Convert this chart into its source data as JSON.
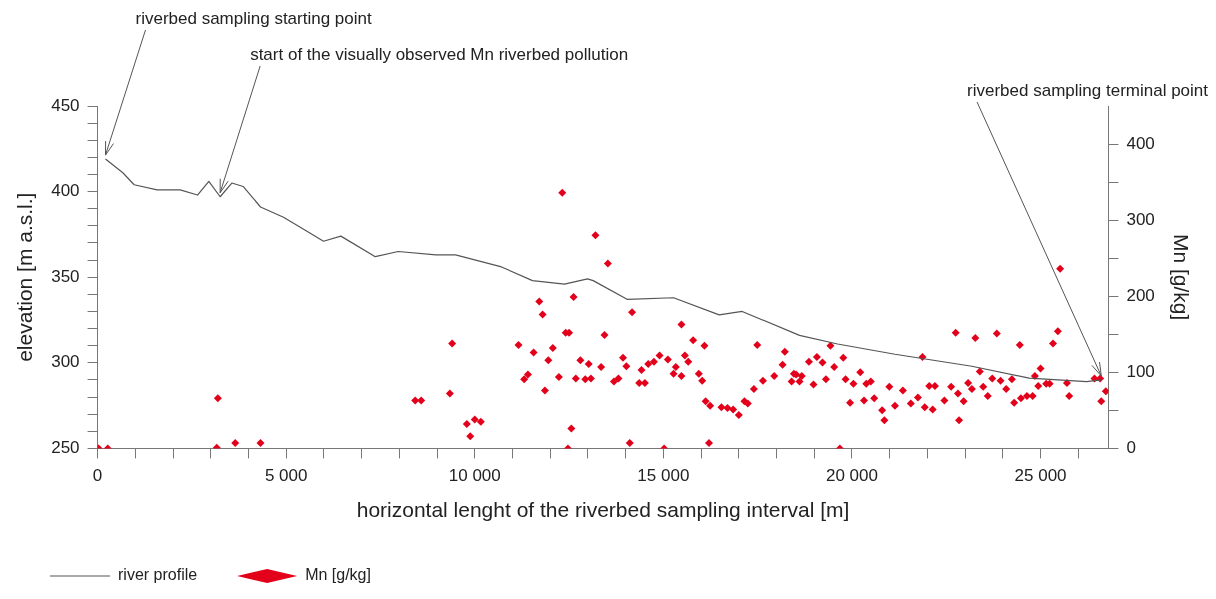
{
  "chart_data": {
    "type": "scatter",
    "xlabel": "horizontal lenght of the riverbed sampling interval [m]",
    "ylabel": "elevation [m a.s.l.]",
    "y2label": "Mn [g/kg]",
    "xlim": [
      0,
      26800
    ],
    "xticks": [
      {
        "value": 0,
        "label": "0"
      },
      {
        "value": 1000,
        "label": null
      },
      {
        "value": 2000,
        "label": null
      },
      {
        "value": 3000,
        "label": null
      },
      {
        "value": 4000,
        "label": null
      },
      {
        "value": 5000,
        "label": "5 000"
      },
      {
        "value": 6000,
        "label": null
      },
      {
        "value": 7000,
        "label": null
      },
      {
        "value": 8000,
        "label": null
      },
      {
        "value": 9000,
        "label": null
      },
      {
        "value": 10000,
        "label": "10 000"
      },
      {
        "value": 11000,
        "label": null
      },
      {
        "value": 12000,
        "label": null
      },
      {
        "value": 13000,
        "label": null
      },
      {
        "value": 14000,
        "label": null
      },
      {
        "value": 15000,
        "label": "15 000"
      },
      {
        "value": 16000,
        "label": null
      },
      {
        "value": 17000,
        "label": null
      },
      {
        "value": 18000,
        "label": null
      },
      {
        "value": 19000,
        "label": null
      },
      {
        "value": 20000,
        "label": "20 000"
      },
      {
        "value": 21000,
        "label": null
      },
      {
        "value": 22000,
        "label": null
      },
      {
        "value": 23000,
        "label": null
      },
      {
        "value": 24000,
        "label": null
      },
      {
        "value": 25000,
        "label": "25 000"
      },
      {
        "value": 26000,
        "label": null
      }
    ],
    "ylim": [
      250,
      450
    ],
    "yticks": [
      250,
      {
        "value": 260,
        "label": null
      },
      {
        "value": 270,
        "label": null
      },
      {
        "value": 280,
        "label": null
      },
      {
        "value": 290,
        "label": null
      },
      300,
      {
        "value": 310,
        "label": null
      },
      {
        "value": 320,
        "label": null
      },
      {
        "value": 330,
        "label": null
      },
      {
        "value": 340,
        "label": null
      },
      350,
      {
        "value": 360,
        "label": null
      },
      {
        "value": 370,
        "label": null
      },
      {
        "value": 380,
        "label": null
      },
      {
        "value": 390,
        "label": null
      },
      400,
      {
        "value": 410,
        "label": null
      },
      {
        "value": 420,
        "label": null
      },
      {
        "value": 430,
        "label": null
      },
      {
        "value": 440,
        "label": null
      },
      450
    ],
    "y2lim": [
      0,
      450
    ],
    "y2ticks": [
      0,
      {
        "value": 50,
        "label": null
      },
      100,
      {
        "value": 150,
        "label": null
      },
      200,
      {
        "value": 250,
        "label": null
      },
      300,
      {
        "value": 350,
        "label": null
      },
      400
    ],
    "grid": false,
    "legend": "bottom left",
    "series": [
      {
        "name": "river profile",
        "type": "line",
        "marker": "none",
        "color": "#555555",
        "x": [
          210,
          670,
          970,
          1580,
          2190,
          2650,
          2950,
          3250,
          3560,
          3860,
          4320,
          4930,
          5540,
          5990,
          6450,
          7360,
          7970,
          8970,
          9490,
          10710,
          11530,
          12380,
          12990,
          13140,
          14050,
          15270,
          16480,
          17090,
          18610,
          19620,
          21140,
          23180,
          24700,
          26220,
          26610
        ],
        "values": [
          419,
          411,
          404,
          401,
          401,
          398,
          406,
          397,
          405,
          403,
          391,
          385,
          377,
          371,
          374,
          362,
          365,
          363,
          363,
          356,
          348,
          346,
          349,
          348,
          337,
          338,
          328,
          330,
          316,
          311,
          305,
          298,
          291,
          289,
          290
        ]
      },
      {
        "name": "Mn [g/kg]",
        "type": "scatter",
        "axis": "y2",
        "marker": "diamond",
        "color": "#e3001b",
        "x": [
          30,
          270,
          3190,
          3160,
          3650,
          4320,
          8420,
          8580,
          9400,
          9340,
          9790,
          10000,
          10160,
          9880,
          12320,
          13200,
          13530,
          11710,
          11800,
          12620,
          14170,
          11160,
          11560,
          12070,
          12410,
          12500,
          11950,
          11310,
          11410,
          11860,
          12230,
          12680,
          12800,
          13020,
          12930,
          13080,
          13350,
          13440,
          13690,
          13810,
          13930,
          14020,
          14360,
          14510,
          14420,
          14600,
          14750,
          14900,
          15120,
          15270,
          15480,
          15330,
          15480,
          15570,
          15660,
          15790,
          15940,
          16030,
          16090,
          16120,
          16240,
          16540,
          16700,
          16850,
          17000,
          17150,
          17240,
          17400,
          17490,
          17640,
          17940,
          18160,
          18220,
          18460,
          12560,
          12470,
          14110,
          15020,
          16210,
          25520,
          25460,
          25330,
          22750,
          23270,
          23840,
          24450,
          19430,
          19770,
          19530,
          18860,
          19070,
          19220,
          18400,
          18610,
          18670,
          18520,
          18980,
          19310,
          19830,
          20040,
          20220,
          20380,
          20500,
          19950,
          20320,
          20590,
          20800,
          20860,
          19680,
          20990,
          21140,
          21350,
          21560,
          21750,
          21930,
          22140,
          21870,
          22050,
          22200,
          22450,
          22630,
          22840,
          22810,
          22960,
          23080,
          23180,
          23390,
          23480,
          23600,
          23720,
          23940,
          24090,
          24240,
          24300,
          24480,
          24640,
          24790,
          24850,
          25000,
          24940,
          25150,
          25240,
          25700,
          25760,
          26430,
          26580,
          26730,
          26610
        ],
        "values": [
          0,
          0,
          66,
          1,
          7,
          7,
          63,
          63,
          138,
          72,
          32,
          38,
          35,
          16,
          336,
          280,
          243,
          193,
          176,
          199,
          179,
          136,
          126,
          132,
          152,
          152,
          116,
          91,
          97,
          76,
          94,
          92,
          116,
          111,
          91,
          92,
          107,
          149,
          88,
          92,
          119,
          108,
          86,
          86,
          103,
          111,
          114,
          122,
          117,
          98,
          95,
          107,
          163,
          122,
          114,
          142,
          98,
          89,
          135,
          62,
          56,
          54,
          53,
          51,
          44,
          62,
          59,
          78,
          136,
          89,
          95,
          110,
          127,
          98,
          26,
          0,
          7,
          0,
          7,
          236,
          154,
          138,
          152,
          145,
          151,
          136,
          135,
          119,
          107,
          114,
          120,
          113,
          88,
          88,
          95,
          97,
          84,
          91,
          91,
          85,
          100,
          85,
          88,
          60,
          63,
          66,
          50,
          37,
          0,
          81,
          56,
          76,
          59,
          67,
          54,
          51,
          120,
          82,
          82,
          63,
          81,
          37,
          72,
          62,
          86,
          78,
          101,
          81,
          69,
          92,
          89,
          78,
          91,
          60,
          66,
          69,
          69,
          95,
          105,
          82,
          85,
          85,
          86,
          69,
          92,
          92,
          75,
          62
        ]
      }
    ],
    "annotations": [
      {
        "text": "riverbed sampling starting point",
        "x": 210,
        "y": 419
      },
      {
        "text": "start of the visually observed Mn riverbed pollution",
        "x": 3250,
        "y": 397
      },
      {
        "text": "riverbed sampling terminal point",
        "x": 26610,
        "y": 290
      }
    ]
  }
}
